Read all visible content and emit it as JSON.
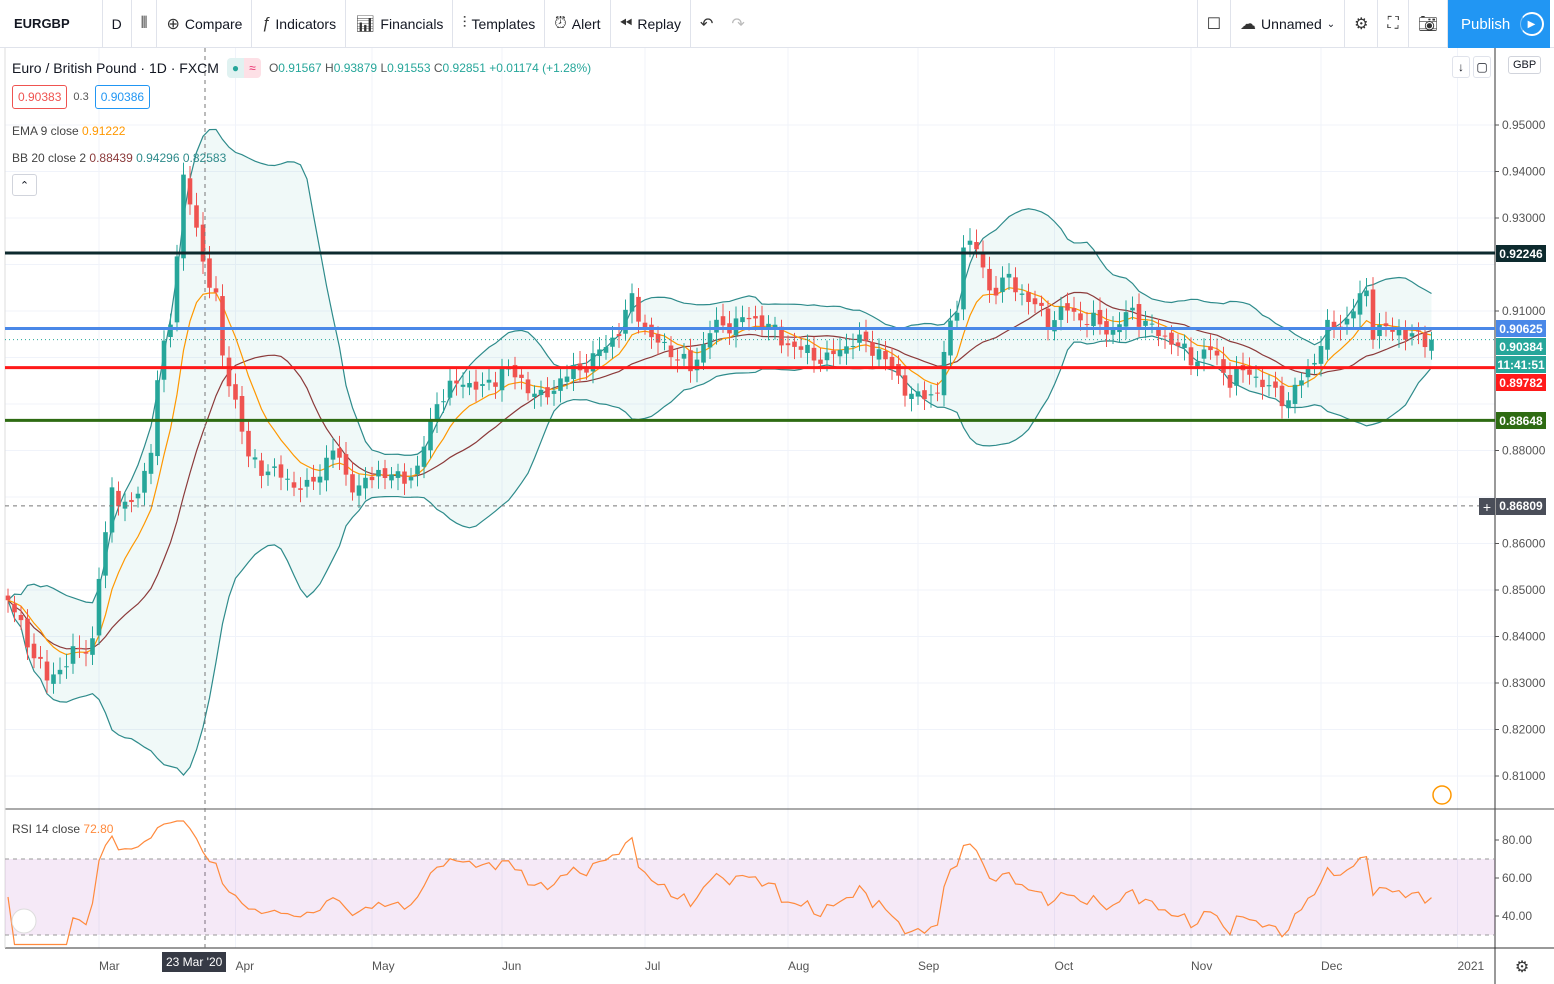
{
  "toolbar": {
    "symbol": "EURGBP",
    "interval": "D",
    "compare": "Compare",
    "indicators": "Indicators",
    "financials": "Financials",
    "templates": "Templates",
    "alert": "Alert",
    "replay": "Replay",
    "layout_name": "Unnamed",
    "publish": "Publish"
  },
  "legend": {
    "title": "Euro / British Pound · 1D · FXCM",
    "open_label": "O",
    "open": "0.91567",
    "high_label": "H",
    "high": "0.93879",
    "low_label": "L",
    "low": "0.91553",
    "close_label": "C",
    "close": "0.92851",
    "change": "+0.01174 (+1.28%)",
    "bid": "0.90383",
    "spread": "0.3",
    "ask": "0.90386"
  },
  "indicators": {
    "ema_label": "EMA 9 close",
    "ema_value": "0.91222",
    "bb_label": "BB 20 close 2",
    "bb_basis": "0.88439",
    "bb_upper": "0.94296",
    "bb_lower": "0.82583",
    "rsi_label": "RSI 14 close",
    "rsi_value": "72.80"
  },
  "price_axis": {
    "currency": "GBP",
    "ticks": [
      "0.95000",
      "0.94000",
      "0.93000",
      "0.91000",
      "0.88000",
      "0.86000",
      "0.85000",
      "0.84000",
      "0.83000",
      "0.82000",
      "0.81000"
    ],
    "tick_values": [
      0.95,
      0.94,
      0.93,
      0.91,
      0.88,
      0.86,
      0.85,
      0.84,
      0.83,
      0.82,
      0.81
    ]
  },
  "rsi_axis": {
    "ticks": [
      "80.00",
      "60.00",
      "40.00"
    ],
    "tick_values": [
      80,
      60,
      40
    ]
  },
  "time_axis": {
    "labels": [
      "Mar",
      "Apr",
      "May",
      "Jun",
      "Jul",
      "Aug",
      "Sep",
      "Oct",
      "Nov",
      "Dec",
      "2021"
    ],
    "label_days": [
      14,
      35,
      56,
      76,
      98,
      120,
      140,
      161,
      182,
      202,
      223
    ],
    "crosshair_label": "23 Mar '20"
  },
  "levels": [
    {
      "price": 0.92246,
      "label": "0.92246",
      "color": "#0d2a2e"
    },
    {
      "price": 0.90625,
      "label": "0.90625",
      "color": "#4a88e8"
    },
    {
      "price": 0.89782,
      "label": "0.89782",
      "color": "#ff1a1a"
    },
    {
      "price": 0.88648,
      "label": "0.88648",
      "color": "#2e6b12"
    }
  ],
  "last_price": {
    "price": 0.90384,
    "label": "0.90384",
    "countdown": "11:41:51",
    "color": "#26a69a"
  },
  "crosshair": {
    "price": 0.86809,
    "label": "0.86809",
    "day": 30
  },
  "colors": {
    "up": "#26a69a",
    "down": "#ef5350",
    "ema": "#ff9800",
    "bb_basis": "#8b3a3a",
    "bb_band": "#2e8b8b",
    "rsi": "#ff8a3d"
  },
  "chart_data": {
    "type": "candlestick",
    "symbol": "EURGBP",
    "close_keypoints": [
      [
        0,
        0.8478
      ],
      [
        3,
        0.8392
      ],
      [
        6,
        0.8306
      ],
      [
        10,
        0.836
      ],
      [
        13,
        0.8392
      ],
      [
        14,
        0.8522
      ],
      [
        16,
        0.8715
      ],
      [
        19,
        0.8672
      ],
      [
        22,
        0.8801
      ],
      [
        23,
        0.8952
      ],
      [
        25,
        0.9081
      ],
      [
        27,
        0.9382
      ],
      [
        29,
        0.9274
      ],
      [
        30,
        0.921
      ],
      [
        32,
        0.9124
      ],
      [
        33,
        0.8995
      ],
      [
        35,
        0.8909
      ],
      [
        37,
        0.878
      ],
      [
        40,
        0.8758
      ],
      [
        43,
        0.8737
      ],
      [
        46,
        0.8715
      ],
      [
        50,
        0.8801
      ],
      [
        52,
        0.8747
      ],
      [
        54,
        0.8715
      ],
      [
        57,
        0.8758
      ],
      [
        60,
        0.8737
      ],
      [
        63,
        0.8758
      ],
      [
        66,
        0.8909
      ],
      [
        70,
        0.8952
      ],
      [
        73,
        0.893
      ],
      [
        76,
        0.8973
      ],
      [
        79,
        0.8952
      ],
      [
        82,
        0.8909
      ],
      [
        85,
        0.8952
      ],
      [
        90,
        0.8995
      ],
      [
        94,
        0.9059
      ],
      [
        96,
        0.9124
      ],
      [
        99,
        0.9038
      ],
      [
        102,
        0.9016
      ],
      [
        105,
        0.8973
      ],
      [
        108,
        0.9059
      ],
      [
        113,
        0.9081
      ],
      [
        116,
        0.9081
      ],
      [
        119,
        0.9038
      ],
      [
        122,
        0.9016
      ],
      [
        126,
        0.8995
      ],
      [
        130,
        0.9038
      ],
      [
        134,
        0.9016
      ],
      [
        137,
        0.8952
      ],
      [
        140,
        0.8909
      ],
      [
        143,
        0.893
      ],
      [
        144,
        0.9016
      ],
      [
        146,
        0.9102
      ],
      [
        147,
        0.9253
      ],
      [
        149,
        0.9231
      ],
      [
        151,
        0.9145
      ],
      [
        154,
        0.9167
      ],
      [
        157,
        0.9124
      ],
      [
        160,
        0.9081
      ],
      [
        163,
        0.9102
      ],
      [
        166,
        0.9081
      ],
      [
        170,
        0.9059
      ],
      [
        173,
        0.9102
      ],
      [
        176,
        0.9059
      ],
      [
        179,
        0.9038
      ],
      [
        182,
        0.8995
      ],
      [
        185,
        0.9016
      ],
      [
        188,
        0.8952
      ],
      [
        191,
        0.8973
      ],
      [
        194,
        0.893
      ],
      [
        197,
        0.8909
      ],
      [
        200,
        0.8973
      ],
      [
        203,
        0.9059
      ],
      [
        206,
        0.9081
      ],
      [
        209,
        0.9145
      ],
      [
        210,
        0.9059
      ],
      [
        214,
        0.9059
      ],
      [
        217,
        0.9038
      ],
      [
        219,
        0.90384
      ]
    ]
  }
}
